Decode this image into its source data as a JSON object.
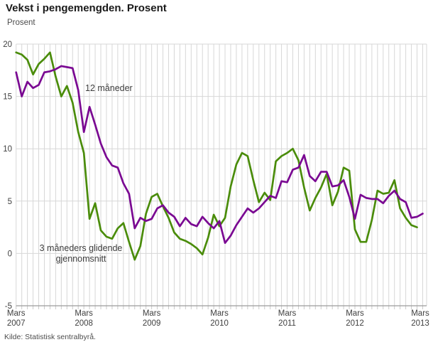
{
  "header": {
    "title": "Vekst i pengemengden. Prosent",
    "subtitle": "Prosent"
  },
  "annotations": {
    "series_12m_label": "12 måneder",
    "series_3m_label_line1": "3 måneders glidende",
    "series_3m_label_line2": "gjennomsnitt"
  },
  "footer": {
    "source": "Kilde: Statistisk sentralbyrå."
  },
  "colors": {
    "purple_12m": "#7a0892",
    "green_3m": "#4a8c0a",
    "gridline": "#d7d7d7",
    "axis_line": "#9c9c9c",
    "tick": "#c9c9c9",
    "text": "#404040"
  },
  "chart_data": {
    "type": "line",
    "title": "Vekst i pengemengden. Prosent",
    "ylabel": "Prosent",
    "ylim": [
      -5,
      20
    ],
    "y_ticks": [
      -5,
      0,
      5,
      10,
      15,
      20
    ],
    "x_tick_labels": [
      "Mars 2007",
      "Mars 2008",
      "Mars 2009",
      "Mars 2010",
      "Mars 2011",
      "Mars 2012",
      "Mars 2013"
    ],
    "x_start": "2007-03",
    "x_frequency": "monthly",
    "grid": true,
    "legend_position": "inline-annotations",
    "series": [
      {
        "name": "3 måneders glidende gjennomsnitt",
        "color": "#4a8c0a",
        "values": [
          19.2,
          19.0,
          18.5,
          17.1,
          18.1,
          18.6,
          19.2,
          16.9,
          15.0,
          16.0,
          14.4,
          11.6,
          9.6,
          3.3,
          4.8,
          2.2,
          1.6,
          1.4,
          2.4,
          2.9,
          1.1,
          -0.6,
          0.7,
          3.8,
          5.4,
          5.7,
          4.5,
          3.4,
          2.0,
          1.4,
          1.2,
          0.9,
          0.5,
          -0.1,
          1.5,
          3.7,
          2.6,
          3.4,
          6.4,
          8.5,
          9.6,
          9.3,
          7.0,
          4.9,
          5.8,
          5.1,
          8.8,
          9.3,
          9.6,
          10.0,
          8.9,
          6.3,
          4.1,
          5.3,
          6.3,
          7.6,
          4.6,
          5.9,
          8.2,
          7.9,
          2.3,
          1.1,
          1.1,
          3.2,
          6.0,
          5.7,
          5.8,
          7.0,
          4.3,
          3.4,
          2.7,
          2.5
        ]
      },
      {
        "name": "12 måneder",
        "color": "#7a0892",
        "values": [
          17.3,
          15.0,
          16.4,
          15.8,
          16.1,
          17.3,
          17.4,
          17.6,
          17.9,
          17.8,
          17.7,
          15.6,
          11.6,
          14.0,
          12.3,
          10.5,
          9.2,
          8.4,
          8.2,
          6.7,
          5.7,
          2.4,
          3.4,
          3.1,
          3.3,
          4.3,
          4.6,
          3.9,
          3.5,
          2.6,
          3.4,
          2.8,
          2.6,
          3.5,
          2.9,
          2.4,
          3.1,
          1.0,
          1.7,
          2.7,
          3.5,
          4.3,
          3.9,
          4.3,
          4.9,
          5.5,
          5.3,
          6.9,
          6.8,
          8.0,
          8.2,
          9.4,
          7.4,
          6.9,
          7.8,
          7.8,
          6.4,
          6.5,
          7.0,
          5.4,
          3.3,
          5.6,
          5.3,
          5.2,
          5.2,
          4.8,
          5.5,
          6.0,
          5.2,
          4.9,
          3.4,
          3.5,
          3.8
        ]
      }
    ]
  }
}
